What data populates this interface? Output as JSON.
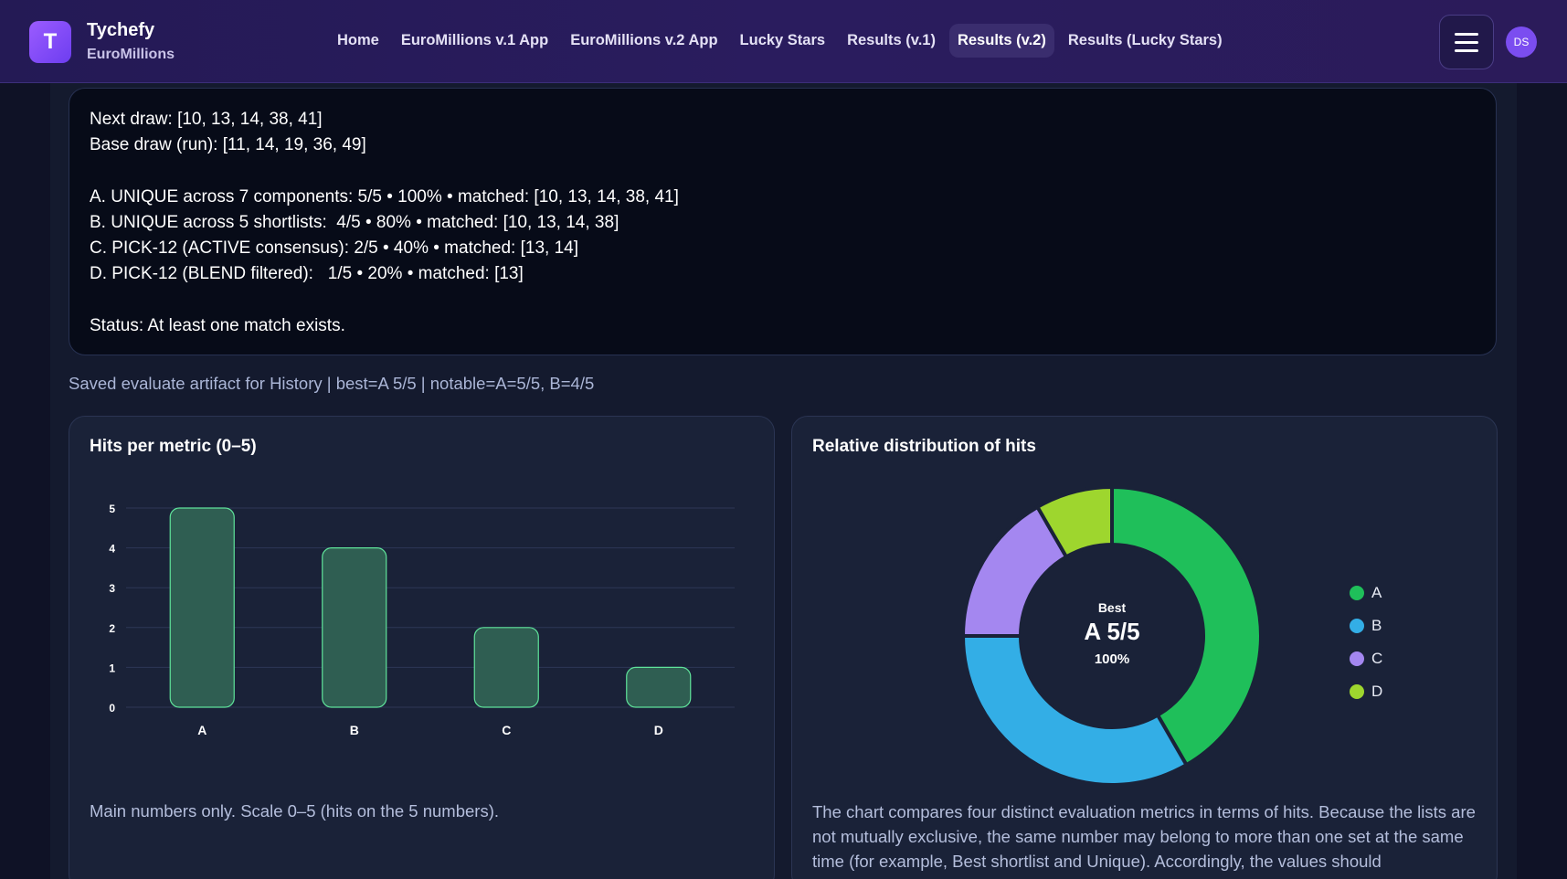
{
  "header": {
    "logo_letter": "T",
    "brand_name": "Tychefy",
    "brand_sub": "EuroMillions",
    "nav": [
      {
        "label": "Home",
        "active": false
      },
      {
        "label": "EuroMillions v.1 App",
        "active": false
      },
      {
        "label": "EuroMillions v.2 App",
        "active": false
      },
      {
        "label": "Lucky Stars",
        "active": false
      },
      {
        "label": "Results (v.1)",
        "active": false
      },
      {
        "label": "Results (v.2)",
        "active": true
      },
      {
        "label": "Results (Lucky Stars)",
        "active": false
      }
    ],
    "menu_icon": "hamburger-icon",
    "avatar_initials": "DS"
  },
  "results": {
    "next_draw": "Next draw: [10, 13, 14, 38, 41]",
    "base_draw": "Base draw (run): [11, 14, 19, 36, 49]",
    "line_a": "A. UNIQUE across 7 components: 5/5 • 100% • matched: [10, 13, 14, 38, 41]",
    "line_b": "B. UNIQUE across 5 shortlists:  4/5 • 80% • matched: [10, 13, 14, 38]",
    "line_c": "C. PICK-12 (ACTIVE consensus): 2/5 • 40% • matched: [13, 14]",
    "line_d": "D. PICK-12 (BLEND filtered):   1/5 • 20% • matched: [13]",
    "status": "Status: At least one match exists."
  },
  "saved_note": "Saved evaluate artifact for History | best=A 5/5 | notable=A=5/5, B=4/5",
  "bar_card": {
    "title": "Hits per metric (0–5)",
    "note": "Main numbers only. Scale 0–5 (hits on the 5 numbers)."
  },
  "donut_card": {
    "title": "Relative distribution of hits",
    "center_label": "Best",
    "center_value": "A 5/5",
    "center_pct": "100%",
    "description": "The chart compares four distinct evaluation metrics in terms of hits. Because the lists are not mutually exclusive, the same number may belong to more than one set at the same time (for example, Best shortlist and Unique). Accordingly, the values should"
  },
  "chart_data": [
    {
      "type": "bar",
      "categories": [
        "A",
        "B",
        "C",
        "D"
      ],
      "values": [
        5,
        4,
        2,
        1
      ],
      "ylim": [
        0,
        5
      ],
      "yticks": [
        0,
        1,
        2,
        3,
        4,
        5
      ],
      "grid": true,
      "bar_color": "#2f5e52",
      "bar_stroke": "#5fe39a"
    },
    {
      "type": "pie",
      "labels": [
        "A",
        "B",
        "C",
        "D"
      ],
      "values": [
        5,
        4,
        2,
        1
      ],
      "colors": [
        "#1fbf5a",
        "#33aee6",
        "#a487f0",
        "#9ed62e"
      ],
      "donut": true,
      "legend": "right"
    }
  ]
}
